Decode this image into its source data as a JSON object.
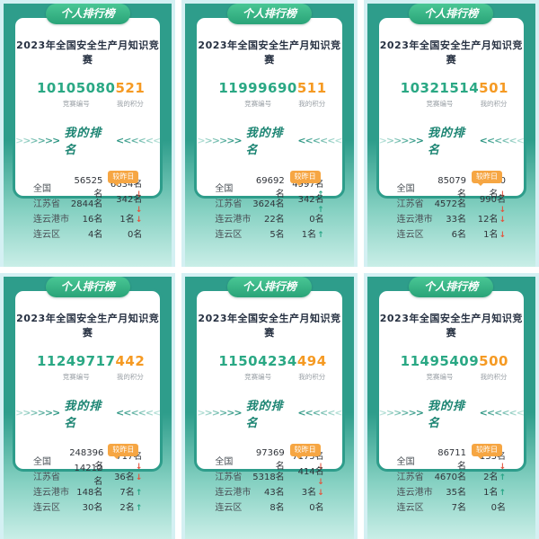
{
  "badge_label": "个人排行榜",
  "title": "2023年全国安全生产月知识竞赛",
  "labels": {
    "id_label": "竞赛编号",
    "score_label": "我的积分",
    "ranking_title": "我的排名",
    "vs_yesterday": "较昨日",
    "chevrons_left": ">>>>>>",
    "chevrons_right": "<<<<<<"
  },
  "colors": {
    "teal_dark": "#2E9D8B",
    "mint_light": "#C9EEE7",
    "cyan_edge": "#D4F0F3",
    "badge_green": "#2AA378",
    "id_green": "#2AA884",
    "score_orange": "#F59A23",
    "vs_badge_orange": "#F6A643",
    "arrow_down_red": "#E2543E",
    "arrow_up_teal": "#27A586"
  },
  "cards": [
    {
      "id": "10105080",
      "score": "521",
      "rows": [
        {
          "region": "全国",
          "rank": "56525名",
          "change": "6634名",
          "arrow": "↓",
          "direction": "down"
        },
        {
          "region": "江苏省",
          "rank": "2844名",
          "change": "342名",
          "arrow": "↓",
          "direction": "down"
        },
        {
          "region": "连云港市",
          "rank": "16名",
          "change": "1名",
          "arrow": "↓",
          "direction": "down"
        },
        {
          "region": "连云区",
          "rank": "4名",
          "change": "0名",
          "arrow": "",
          "direction": "none"
        }
      ]
    },
    {
      "id": "11999690",
      "score": "511",
      "rows": [
        {
          "region": "全国",
          "rank": "69692名",
          "change": "4997名",
          "arrow": "↑",
          "direction": "up"
        },
        {
          "region": "江苏省",
          "rank": "3624名",
          "change": "342名",
          "arrow": "↑",
          "direction": "up"
        },
        {
          "region": "连云港市",
          "rank": "22名",
          "change": "0名",
          "arrow": "",
          "direction": "none"
        },
        {
          "region": "连云区",
          "rank": "5名",
          "change": "1名",
          "arrow": "↑",
          "direction": "up"
        }
      ]
    },
    {
      "id": "10321514",
      "score": "501",
      "rows": [
        {
          "region": "全国",
          "rank": "85079名",
          "change": "16520名",
          "arrow": "↓",
          "direction": "down"
        },
        {
          "region": "江苏省",
          "rank": "4572名",
          "change": "990名",
          "arrow": "↓",
          "direction": "down"
        },
        {
          "region": "连云港市",
          "rank": "33名",
          "change": "12名",
          "arrow": "↓",
          "direction": "down"
        },
        {
          "region": "连云区",
          "rank": "6名",
          "change": "1名",
          "arrow": "↓",
          "direction": "down"
        }
      ]
    },
    {
      "id": "11249717",
      "score": "442",
      "rows": [
        {
          "region": "全国",
          "rank": "248396名",
          "change": "717名",
          "arrow": "↓",
          "direction": "down"
        },
        {
          "region": "江苏省",
          "rank": "14212名",
          "change": "36名",
          "arrow": "↓",
          "direction": "down"
        },
        {
          "region": "连云港市",
          "rank": "148名",
          "change": "7名",
          "arrow": "↑",
          "direction": "up"
        },
        {
          "region": "连云区",
          "rank": "30名",
          "change": "2名",
          "arrow": "↑",
          "direction": "up"
        }
      ]
    },
    {
      "id": "11504234",
      "score": "494",
      "rows": [
        {
          "region": "全国",
          "rank": "97369名",
          "change": "7175名",
          "arrow": "↓",
          "direction": "down"
        },
        {
          "region": "江苏省",
          "rank": "5318名",
          "change": "414名",
          "arrow": "↓",
          "direction": "down"
        },
        {
          "region": "连云港市",
          "rank": "43名",
          "change": "3名",
          "arrow": "↓",
          "direction": "down"
        },
        {
          "region": "连云区",
          "rank": "8名",
          "change": "0名",
          "arrow": "",
          "direction": "none"
        }
      ]
    },
    {
      "id": "11495409",
      "score": "500",
      "rows": [
        {
          "region": "全国",
          "rank": "86711名",
          "change": "133名",
          "arrow": "↓",
          "direction": "down"
        },
        {
          "region": "江苏省",
          "rank": "4670名",
          "change": "2名",
          "arrow": "↑",
          "direction": "up"
        },
        {
          "region": "连云港市",
          "rank": "35名",
          "change": "1名",
          "arrow": "↑",
          "direction": "up"
        },
        {
          "region": "连云区",
          "rank": "7名",
          "change": "0名",
          "arrow": "",
          "direction": "none"
        }
      ]
    }
  ]
}
